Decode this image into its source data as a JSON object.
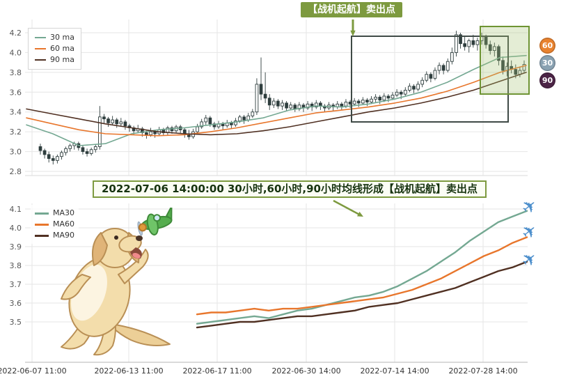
{
  "colors": {
    "ma30": "#74a892",
    "ma60": "#e8762c",
    "ma90": "#503022",
    "candle": "#2f3e3e",
    "grid": "#e6e6e6",
    "accent": "#7d9a3f",
    "box_dark": "#3f4a46",
    "box_green": "#6e9433",
    "box_green_fill": "rgba(167,196,116,0.30)",
    "plane": "#4d8fcc"
  },
  "callout": {
    "label": "【战机起航】卖出点"
  },
  "annotation": {
    "text": "2022-07-06 14:00:00 30小时,60小时,90小时均线形成【战机起航】卖出点"
  },
  "icons": {
    "airplane": "✈"
  },
  "ma_badges": [
    {
      "label": "60",
      "color": "#e8822f"
    },
    {
      "label": "30",
      "color": "#8aa2b2"
    },
    {
      "label": "90",
      "color": "#4c2446"
    }
  ],
  "x_axis": {
    "ticks": [
      "2022-06-07 11:00",
      "2022-06-13 11:00",
      "2022-06-17 11:00",
      "2022-06-30 14:00",
      "2022-07-14 14:00",
      "2022-07-28 14:00"
    ]
  },
  "chart_data": [
    {
      "id": "price-candlestick",
      "type": "candlestick",
      "title": "",
      "ylim": [
        2.78,
        4.3
      ],
      "y_ticks": [
        2.8,
        3.0,
        3.2,
        3.4,
        3.6,
        3.8,
        4.0,
        4.2
      ],
      "legend": [
        {
          "label": "30 ma",
          "color": "#74a892"
        },
        {
          "label": "60 ma",
          "color": "#e8762c"
        },
        {
          "label": "90 ma",
          "color": "#503022"
        }
      ],
      "candles": [
        [
          3.05,
          3.08,
          2.97,
          3.01
        ],
        [
          3.01,
          3.03,
          2.93,
          2.97
        ],
        [
          2.97,
          3.0,
          2.89,
          2.93
        ],
        [
          2.93,
          2.96,
          2.87,
          2.91
        ],
        [
          2.91,
          2.97,
          2.88,
          2.95
        ],
        [
          2.95,
          3.01,
          2.92,
          2.99
        ],
        [
          2.99,
          3.05,
          2.96,
          3.03
        ],
        [
          3.03,
          3.08,
          3.0,
          3.06
        ],
        [
          3.06,
          3.1,
          3.02,
          3.08
        ],
        [
          3.08,
          3.1,
          3.01,
          3.04
        ],
        [
          3.04,
          3.06,
          2.97,
          3.0
        ],
        [
          3.0,
          3.03,
          2.95,
          2.98
        ],
        [
          2.98,
          3.04,
          2.96,
          3.02
        ],
        [
          3.02,
          3.07,
          2.99,
          3.05
        ],
        [
          3.05,
          3.46,
          3.02,
          3.35
        ],
        [
          3.35,
          3.38,
          3.28,
          3.33
        ],
        [
          3.33,
          3.35,
          3.25,
          3.29
        ],
        [
          3.29,
          3.36,
          3.27,
          3.32
        ],
        [
          3.32,
          3.34,
          3.24,
          3.28
        ],
        [
          3.28,
          3.34,
          3.26,
          3.3
        ],
        [
          3.3,
          3.32,
          3.22,
          3.26
        ],
        [
          3.26,
          3.28,
          3.2,
          3.24
        ],
        [
          3.24,
          3.26,
          3.17,
          3.21
        ],
        [
          3.21,
          3.27,
          3.19,
          3.23
        ],
        [
          3.23,
          3.25,
          3.15,
          3.19
        ],
        [
          3.19,
          3.21,
          3.13,
          3.17
        ],
        [
          3.17,
          3.24,
          3.15,
          3.2
        ],
        [
          3.2,
          3.22,
          3.14,
          3.18
        ],
        [
          3.18,
          3.25,
          3.16,
          3.22
        ],
        [
          3.22,
          3.24,
          3.16,
          3.19
        ],
        [
          3.19,
          3.26,
          3.17,
          3.24
        ],
        [
          3.24,
          3.26,
          3.18,
          3.21
        ],
        [
          3.21,
          3.27,
          3.19,
          3.25
        ],
        [
          3.25,
          3.27,
          3.18,
          3.22
        ],
        [
          3.22,
          3.24,
          3.14,
          3.18
        ],
        [
          3.18,
          3.22,
          3.12,
          3.15
        ],
        [
          3.15,
          3.23,
          3.13,
          3.2
        ],
        [
          3.2,
          3.28,
          3.18,
          3.25
        ],
        [
          3.25,
          3.33,
          3.23,
          3.3
        ],
        [
          3.3,
          3.37,
          3.27,
          3.34
        ],
        [
          3.34,
          3.36,
          3.25,
          3.28
        ],
        [
          3.28,
          3.3,
          3.22,
          3.25
        ],
        [
          3.25,
          3.31,
          3.23,
          3.28
        ],
        [
          3.28,
          3.3,
          3.22,
          3.26
        ],
        [
          3.26,
          3.32,
          3.24,
          3.29
        ],
        [
          3.29,
          3.31,
          3.23,
          3.27
        ],
        [
          3.27,
          3.34,
          3.25,
          3.31
        ],
        [
          3.31,
          3.37,
          3.29,
          3.35
        ],
        [
          3.35,
          3.37,
          3.28,
          3.32
        ],
        [
          3.32,
          3.39,
          3.3,
          3.36
        ],
        [
          3.36,
          3.43,
          3.34,
          3.4
        ],
        [
          3.4,
          3.74,
          3.37,
          3.68
        ],
        [
          3.68,
          3.95,
          3.52,
          3.58
        ],
        [
          3.58,
          3.8,
          3.49,
          3.54
        ],
        [
          3.54,
          3.58,
          3.42,
          3.47
        ],
        [
          3.47,
          3.54,
          3.44,
          3.51
        ],
        [
          3.51,
          3.53,
          3.43,
          3.46
        ],
        [
          3.46,
          3.52,
          3.42,
          3.49
        ],
        [
          3.49,
          3.51,
          3.41,
          3.44
        ],
        [
          3.44,
          3.5,
          3.42,
          3.47
        ],
        [
          3.47,
          3.49,
          3.4,
          3.43
        ],
        [
          3.43,
          3.5,
          3.41,
          3.47
        ],
        [
          3.47,
          3.49,
          3.4,
          3.44
        ],
        [
          3.44,
          3.51,
          3.42,
          3.48
        ],
        [
          3.48,
          3.5,
          3.41,
          3.45
        ],
        [
          3.45,
          3.52,
          3.43,
          3.49
        ],
        [
          3.49,
          3.51,
          3.42,
          3.46
        ],
        [
          3.46,
          3.48,
          3.4,
          3.44
        ],
        [
          3.44,
          3.5,
          3.42,
          3.47
        ],
        [
          3.47,
          3.49,
          3.41,
          3.45
        ],
        [
          3.45,
          3.51,
          3.43,
          3.48
        ],
        [
          3.48,
          3.5,
          3.42,
          3.46
        ],
        [
          3.46,
          3.53,
          3.44,
          3.5
        ],
        [
          3.5,
          3.52,
          3.44,
          3.48
        ],
        [
          3.48,
          3.54,
          3.46,
          3.51
        ],
        [
          3.51,
          3.53,
          3.45,
          3.49
        ],
        [
          3.49,
          3.55,
          3.47,
          3.52
        ],
        [
          3.52,
          3.54,
          3.46,
          3.5
        ],
        [
          3.5,
          3.56,
          3.48,
          3.53
        ],
        [
          3.53,
          3.58,
          3.5,
          3.55
        ],
        [
          3.55,
          3.57,
          3.48,
          3.52
        ],
        [
          3.52,
          3.59,
          3.5,
          3.56
        ],
        [
          3.56,
          3.58,
          3.5,
          3.54
        ],
        [
          3.54,
          3.6,
          3.52,
          3.57
        ],
        [
          3.57,
          3.63,
          3.55,
          3.6
        ],
        [
          3.6,
          3.62,
          3.53,
          3.58
        ],
        [
          3.58,
          3.65,
          3.56,
          3.62
        ],
        [
          3.62,
          3.69,
          3.6,
          3.66
        ],
        [
          3.66,
          3.68,
          3.59,
          3.63
        ],
        [
          3.63,
          3.71,
          3.61,
          3.68
        ],
        [
          3.68,
          3.75,
          3.65,
          3.72
        ],
        [
          3.72,
          3.81,
          3.7,
          3.78
        ],
        [
          3.78,
          3.8,
          3.7,
          3.74
        ],
        [
          3.74,
          3.85,
          3.72,
          3.82
        ],
        [
          3.82,
          3.9,
          3.78,
          3.87
        ],
        [
          3.87,
          3.89,
          3.78,
          3.82
        ],
        [
          3.82,
          3.94,
          3.8,
          3.91
        ],
        [
          3.91,
          4.05,
          3.88,
          4.0
        ],
        [
          4.0,
          4.22,
          3.96,
          4.18
        ],
        [
          4.18,
          4.2,
          4.04,
          4.09
        ],
        [
          4.09,
          4.16,
          4.02,
          4.06
        ],
        [
          4.06,
          4.14,
          4.0,
          4.12
        ],
        [
          4.12,
          4.18,
          4.05,
          4.08
        ],
        [
          4.08,
          4.15,
          4.02,
          4.12
        ],
        [
          4.12,
          4.2,
          4.08,
          4.16
        ],
        [
          4.16,
          4.18,
          4.04,
          4.08
        ],
        [
          4.08,
          4.12,
          3.98,
          4.02
        ],
        [
          4.02,
          4.1,
          3.96,
          4.06
        ],
        [
          4.06,
          4.08,
          3.87,
          3.92
        ],
        [
          3.92,
          3.96,
          3.78,
          3.82
        ],
        [
          3.82,
          3.9,
          3.76,
          3.86
        ],
        [
          3.86,
          3.92,
          3.79,
          3.83
        ],
        [
          3.83,
          3.88,
          3.74,
          3.78
        ],
        [
          3.78,
          3.86,
          3.75,
          3.82
        ],
        [
          3.82,
          3.92,
          3.8,
          3.88
        ]
      ],
      "series": [
        {
          "name": "30 ma",
          "color": "#74a892",
          "values": [
            3.27,
            3.18,
            3.06,
            3.08,
            3.18,
            3.22,
            3.24,
            3.27,
            3.3,
            3.34,
            3.42,
            3.46,
            3.45,
            3.48,
            3.53,
            3.6,
            3.7,
            3.83,
            3.95,
            3.97
          ]
        },
        {
          "name": "60 ma",
          "color": "#e8762c",
          "values": [
            3.34,
            3.28,
            3.22,
            3.18,
            3.17,
            3.16,
            3.17,
            3.2,
            3.24,
            3.29,
            3.34,
            3.39,
            3.42,
            3.45,
            3.49,
            3.54,
            3.61,
            3.7,
            3.8,
            3.87
          ]
        },
        {
          "name": "90 ma",
          "color": "#503022",
          "values": [
            3.43,
            3.38,
            3.33,
            3.28,
            3.24,
            3.2,
            3.18,
            3.17,
            3.18,
            3.21,
            3.25,
            3.3,
            3.35,
            3.4,
            3.44,
            3.49,
            3.55,
            3.62,
            3.71,
            3.8
          ]
        }
      ]
    },
    {
      "id": "ma-line-chart",
      "type": "line",
      "title": "",
      "ylim": [
        3.28,
        4.15
      ],
      "y_ticks": [
        3.5,
        3.6,
        3.7,
        3.8,
        3.9,
        4.0,
        4.1
      ],
      "legend": [
        {
          "label": "MA30",
          "color": "#74a892"
        },
        {
          "label": "MA60",
          "color": "#e8762c"
        },
        {
          "label": "MA90",
          "color": "#503022"
        }
      ],
      "series": [
        {
          "name": "MA30",
          "color": "#74a892",
          "values": [
            3.49,
            3.5,
            3.51,
            3.52,
            3.53,
            3.52,
            3.54,
            3.56,
            3.57,
            3.59,
            3.61,
            3.63,
            3.64,
            3.66,
            3.69,
            3.73,
            3.77,
            3.82,
            3.87,
            3.93,
            3.98,
            4.03,
            4.06,
            4.09
          ]
        },
        {
          "name": "MA60",
          "color": "#e8762c",
          "values": [
            3.54,
            3.55,
            3.55,
            3.56,
            3.57,
            3.56,
            3.57,
            3.57,
            3.58,
            3.59,
            3.6,
            3.61,
            3.62,
            3.63,
            3.65,
            3.67,
            3.7,
            3.73,
            3.77,
            3.81,
            3.85,
            3.88,
            3.92,
            3.95
          ]
        },
        {
          "name": "MA90",
          "color": "#503022",
          "values": [
            3.47,
            3.48,
            3.49,
            3.5,
            3.5,
            3.51,
            3.52,
            3.53,
            3.53,
            3.54,
            3.55,
            3.56,
            3.58,
            3.59,
            3.6,
            3.62,
            3.64,
            3.66,
            3.68,
            3.71,
            3.74,
            3.77,
            3.79,
            3.82
          ]
        }
      ]
    }
  ]
}
